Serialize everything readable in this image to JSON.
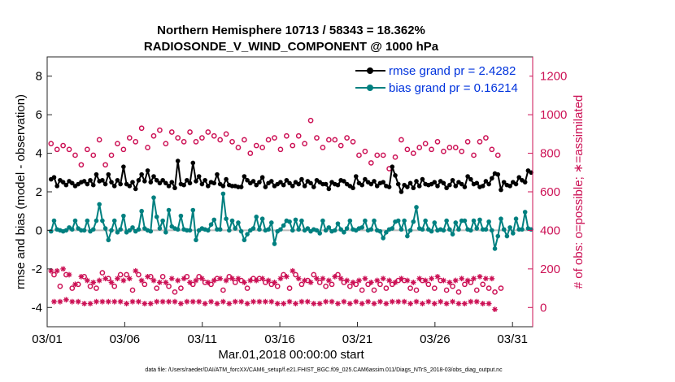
{
  "chart_data": {
    "type": "line",
    "title": "Northern Hemisphere 10713 / 58343 = 18.362%",
    "subtitle": "RADIOSONDE_V_WIND_COMPONENT @ 1000 hPa",
    "xlabel": "Mar.01,2018 00:00:00 start",
    "ylabel_left": "rmse and bias (model - observation)",
    "ylabel_right": "# of obs: o=possible; ∗=assimilated",
    "footer": "data file: /Users/raeder/DAI/ATM_forcXX/CAM6_setup/f.e21.FHIST_BGC.f09_025.CAM6assim.011/Diags_NTrS_2018-03/obs_diag_output.nc",
    "x_ticks": [
      "03/01",
      "03/06",
      "03/11",
      "03/16",
      "03/21",
      "03/26",
      "03/31"
    ],
    "x_tick_days": [
      1,
      6,
      11,
      16,
      21,
      26,
      31
    ],
    "xlim_days": [
      1,
      32.3
    ],
    "ylim_left": [
      -5.0,
      9.0
    ],
    "ylim_right": [
      -100,
      1300
    ],
    "y_ticks_left": [
      "-4",
      "-2",
      "0",
      "2",
      "4",
      "6",
      "8"
    ],
    "y_ticks_right": [
      "0",
      "200",
      "400",
      "600",
      "800",
      "1000",
      "1200"
    ],
    "grid": false,
    "legend_position": "top-right",
    "colors": {
      "rmse": "#000000",
      "bias": "#008080",
      "obs": "#cc1155",
      "right_axis": "#cc1155",
      "zero_line": "#bbbbbb",
      "legend_text": "#0033dd"
    },
    "series": [
      {
        "name": "rmse grand pr = 2.4282",
        "key": "rmse",
        "axis": "left",
        "values": [
          2.65,
          2.75,
          2.3,
          2.6,
          2.5,
          2.35,
          2.55,
          2.45,
          2.3,
          2.4,
          2.5,
          2.55,
          2.4,
          2.6,
          2.35,
          2.9,
          2.55,
          2.6,
          2.4,
          2.9,
          2.5,
          2.3,
          2.6,
          2.4,
          3.3,
          2.4,
          2.3,
          2.5,
          2.15,
          2.6,
          2.9,
          2.55,
          3.1,
          2.5,
          2.8,
          2.6,
          2.45,
          2.6,
          2.45,
          2.3,
          2.5,
          2.2,
          3.6,
          2.4,
          2.35,
          2.6,
          2.45,
          3.5,
          2.55,
          2.8,
          2.4,
          2.6,
          2.3,
          2.5,
          2.45,
          2.9,
          2.4,
          2.3,
          2.65,
          2.35,
          2.3,
          2.3,
          2.25,
          2.25,
          2.8,
          2.6,
          2.45,
          2.55,
          2.35,
          2.5,
          2.75,
          2.25,
          2.45,
          2.55,
          2.3,
          2.4,
          2.5,
          2.35,
          2.6,
          2.45,
          2.3,
          2.5,
          2.4,
          2.65,
          2.3,
          2.55,
          2.45,
          2.25,
          2.6,
          2.5,
          2.4,
          2.4,
          2.15,
          2.5,
          2.4,
          2.35,
          2.6,
          2.55,
          2.4,
          2.3,
          2.2,
          2.8,
          2.45,
          2.35,
          2.65,
          2.5,
          2.4,
          2.55,
          2.3,
          2.45,
          2.5,
          2.3,
          2.25,
          3.3,
          2.85,
          2.4,
          2.0,
          2.35,
          2.25,
          2.45,
          2.2,
          2.55,
          2.3,
          2.65,
          2.4,
          2.35,
          2.4,
          2.5,
          2.3,
          2.55,
          2.45,
          2.2,
          2.35,
          2.6,
          2.3,
          2.5,
          2.4,
          2.25,
          2.8,
          2.65,
          2.4,
          2.45,
          2.25,
          2.3,
          2.55,
          2.4,
          2.7,
          2.95,
          2.9,
          2.1,
          2.5,
          2.35,
          2.3,
          2.5,
          2.4,
          2.75,
          2.6,
          2.5,
          3.1,
          3.0
        ]
      },
      {
        "name": "bias grand pr = 0.16214",
        "key": "bias",
        "axis": "left",
        "values": [
          -0.05,
          0.5,
          0.05,
          0.0,
          -0.05,
          0.0,
          0.15,
          0.05,
          0.5,
          0.1,
          0.0,
          0.0,
          0.5,
          -0.05,
          0.05,
          0.5,
          1.35,
          0.5,
          0.1,
          -0.5,
          0.0,
          0.5,
          -0.1,
          0.05,
          0.75,
          -0.1,
          0.0,
          0.15,
          -0.05,
          0.05,
          1.0,
          0.1,
          0.0,
          -0.05,
          1.7,
          0.7,
          0.1,
          0.5,
          -0.1,
          1.05,
          0.2,
          0.1,
          0.05,
          0.75,
          0.05,
          0.0,
          0.0,
          1.05,
          -0.5,
          0.0,
          0.1,
          0.05,
          0.0,
          0.3,
          0.55,
          0.05,
          0.05,
          1.9,
          0.6,
          0.0,
          0.5,
          0.1,
          0.4,
          -0.05,
          -0.5,
          -0.2,
          0.0,
          0.1,
          0.7,
          0.05,
          0.6,
          0.0,
          0.05,
          0.4,
          -0.7,
          -0.05,
          0.05,
          0.25,
          0.5,
          0.45,
          0.0,
          0.55,
          0.05,
          0.5,
          0.0,
          0.1,
          -0.05,
          0.05,
          0.0,
          -0.15,
          0.5,
          0.0,
          0.15,
          -0.05,
          0.0,
          0.35,
          0.05,
          -0.1,
          0.1,
          0.5,
          0.05,
          0.0,
          0.1,
          0.15,
          0.5,
          0.0,
          0.05,
          0.5,
          0.0,
          -0.05,
          -0.4,
          -0.1,
          0.05,
          0.1,
          0.45,
          0.5,
          0.05,
          0.5,
          -0.3,
          0.0,
          0.45,
          1.2,
          0.1,
          0.05,
          0.5,
          0.05,
          -0.05,
          0.4,
          0.0,
          0.05,
          0.0,
          0.5,
          0.05,
          -0.2,
          0.4,
          0.05,
          0.5,
          0.5,
          0.05,
          0.0,
          0.5,
          0.1,
          0.55,
          0.05,
          0.05,
          0.45,
          0.0,
          -0.95,
          -0.3,
          0.6,
          0.05,
          -0.3,
          0.15,
          -0.15,
          0.6,
          0.05,
          0.05,
          0.95,
          0.1,
          0.05
        ]
      },
      {
        "name": "possible obs",
        "key": "possible",
        "axis": "right",
        "marker": "o",
        "values": [
          850,
          170,
          820,
          110,
          840,
          170,
          820,
          100,
          790,
          120,
          740,
          160,
          820,
          110,
          790,
          100,
          870,
          180,
          740,
          150,
          790,
          110,
          850,
          170,
          820,
          170,
          880,
          90,
          860,
          170,
          930,
          120,
          830,
          160,
          890,
          100,
          920,
          160,
          850,
          110,
          910,
          80,
          880,
          100,
          860,
          160,
          910,
          120,
          860,
          160,
          880,
          130,
          910,
          120,
          890,
          150,
          870,
          90,
          900,
          160,
          860,
          130,
          830,
          140,
          870,
          100,
          800,
          150,
          840,
          150,
          830,
          130,
          870,
          120,
          880,
          110,
          820,
          170,
          890,
          100,
          840,
          170,
          890,
          120,
          850,
          140,
          970,
          170,
          880,
          130,
          830,
          110,
          870,
          120,
          870,
          170,
          840,
          130,
          880,
          110,
          860,
          120,
          790,
          90,
          810,
          120,
          750,
          90,
          790,
          120,
          790,
          100,
          720,
          120,
          780,
          140,
          870,
          140,
          820,
          100,
          800,
          90,
          830,
          140,
          850,
          120,
          820,
          100,
          860,
          140,
          810,
          90,
          830,
          110,
          830,
          80,
          810,
          120,
          860,
          130,
          790,
          90,
          860,
          120,
          880,
          100,
          820,
          80,
          790,
          100
        ]
      },
      {
        "name": "assimilated obs",
        "key": "assimilated",
        "axis": "right",
        "marker": "*",
        "values": [
          190,
          30,
          190,
          30,
          200,
          40,
          170,
          30,
          120,
          30,
          160,
          20,
          140,
          20,
          130,
          30,
          140,
          30,
          150,
          30,
          130,
          30,
          150,
          30,
          140,
          20,
          150,
          30,
          190,
          30,
          140,
          20,
          160,
          20,
          140,
          30,
          130,
          30,
          130,
          30,
          150,
          30,
          140,
          20,
          150,
          30,
          130,
          30,
          140,
          30,
          150,
          20,
          130,
          30,
          140,
          20,
          150,
          30,
          140,
          20,
          150,
          30,
          150,
          30,
          130,
          20,
          140,
          30,
          140,
          30,
          150,
          30,
          140,
          30,
          130,
          20,
          150,
          20,
          160,
          30,
          190,
          20,
          150,
          30,
          140,
          30,
          130,
          20,
          150,
          20,
          150,
          30,
          140,
          30,
          160,
          20,
          150,
          30,
          140,
          20,
          130,
          30,
          140,
          20,
          150,
          30,
          130,
          20,
          140,
          30,
          150,
          20,
          140,
          30,
          130,
          30,
          150,
          30,
          140,
          20,
          130,
          30,
          150,
          20,
          140,
          30,
          150,
          20,
          160,
          30,
          140,
          20,
          130,
          30,
          140,
          20,
          150,
          20,
          140,
          30,
          150,
          30,
          160,
          20,
          150,
          20,
          150,
          -10
        ]
      }
    ]
  }
}
